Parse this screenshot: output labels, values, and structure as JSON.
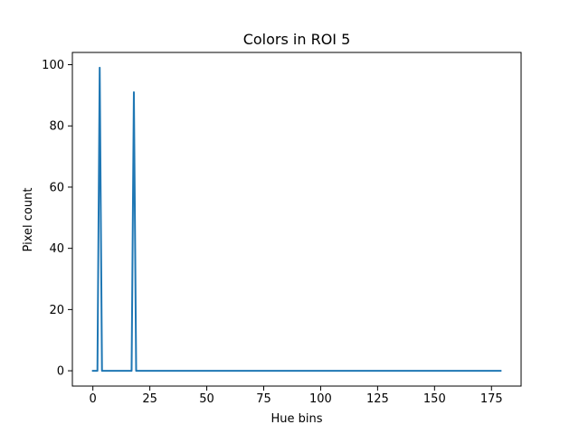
{
  "chart_data": {
    "type": "line",
    "title": "Colors in ROI 5",
    "xlabel": "Hue bins",
    "ylabel": "Pixel count",
    "xlim": [
      -9,
      188
    ],
    "ylim": [
      -5,
      104
    ],
    "xticks": [
      0,
      25,
      50,
      75,
      100,
      125,
      150,
      175
    ],
    "yticks": [
      0,
      20,
      40,
      60,
      80,
      100
    ],
    "grid": false,
    "series": [
      {
        "color": "#1f77b4",
        "points": [
          [
            0,
            0
          ],
          [
            2,
            0
          ],
          [
            3,
            99
          ],
          [
            4,
            0
          ],
          [
            17,
            0
          ],
          [
            18,
            91
          ],
          [
            19,
            0
          ],
          [
            179,
            0
          ]
        ]
      }
    ]
  }
}
